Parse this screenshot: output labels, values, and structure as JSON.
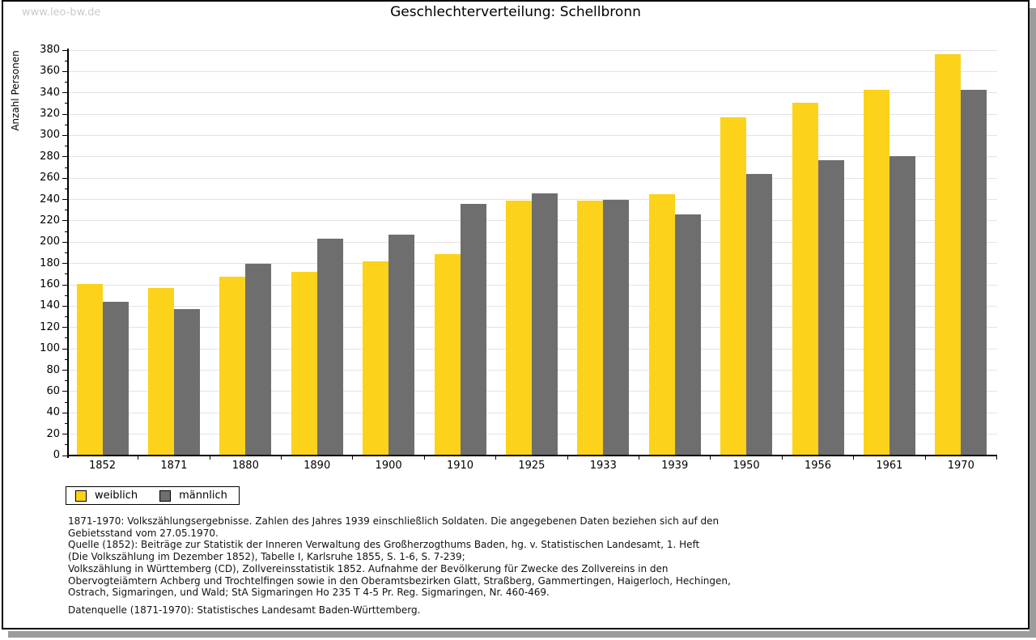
{
  "page": {
    "watermark": "www.leo-bw.de"
  },
  "chart_data": {
    "type": "bar",
    "title": "Geschlechterverteilung: Schellbronn",
    "xlabel": "",
    "ylabel": "Anzahl Personen",
    "ylim": [
      0,
      380
    ],
    "ytick_step": 20,
    "ytick_minor_step": 10,
    "grid": true,
    "legend_position": "bottom-left",
    "categories": [
      "1852",
      "1871",
      "1880",
      "1890",
      "1900",
      "1910",
      "1925",
      "1933",
      "1939",
      "1950",
      "1956",
      "1961",
      "1970"
    ],
    "series": [
      {
        "name": "weiblich",
        "color": "#fcd21b",
        "values": [
          161,
          157,
          168,
          172,
          182,
          189,
          239,
          239,
          245,
          317,
          331,
          343,
          376
        ]
      },
      {
        "name": "männlich",
        "color": "#6e6e6e",
        "values": [
          144,
          137,
          180,
          203,
          207,
          236,
          246,
          240,
          226,
          264,
          277,
          281,
          343
        ]
      }
    ]
  },
  "footnotes": {
    "lines": [
      "1871-1970: Volkszählungsergebnisse. Zahlen des Jahres 1939 einschließlich Soldaten. Die angegebenen Daten beziehen sich auf den",
      "Gebietsstand vom 27.05.1970.",
      "Quelle (1852): Beiträge zur Statistik der Inneren Verwaltung des Großherzogthums Baden, hg. v. Statistischen Landesamt, 1. Heft",
      "(Die Volkszählung im Dezember 1852), Tabelle I, Karlsruhe 1855, S. 1-6, S. 7-239;",
      "Volkszählung in Württemberg (CD), Zollvereinsstatistik 1852. Aufnahme der Bevölkerung für Zwecke des Zollvereins in den",
      "Obervogteiämtern Achberg und Trochtelfingen sowie in den Oberamtsbezirken Glatt, Straßberg, Gammertingen, Haigerloch, Hechingen,",
      "Ostrach, Sigmaringen, und Wald; StA Sigmaringen Ho 235 T 4-5 Pr. Reg. Sigmaringen, Nr. 460-469."
    ],
    "source": "Datenquelle (1871-1970): Statistisches Landesamt Baden-Württemberg."
  }
}
